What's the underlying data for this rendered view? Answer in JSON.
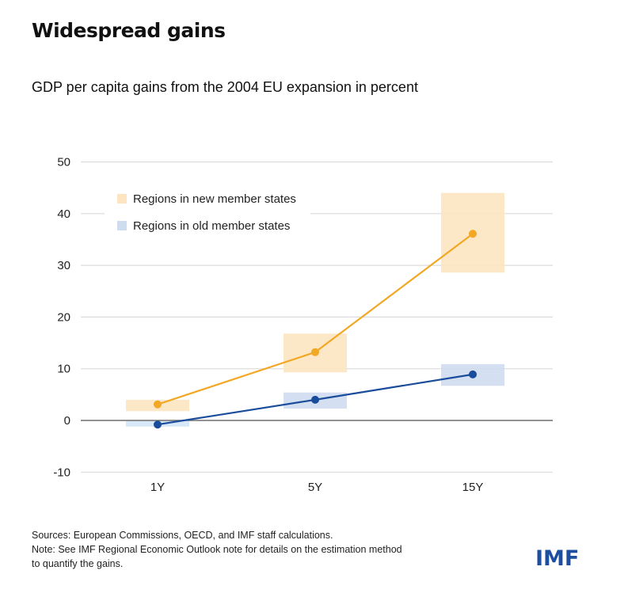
{
  "header": {
    "title": "Widespread gains",
    "subtitle": "GDP per capita gains from the 2004 EU expansion in percent"
  },
  "footer": {
    "sources": "Sources: European Commissions, OECD, and IMF staff calculations.",
    "note_line1": "Note: See IMF Regional Economic Outlook note for details on the estimation method",
    "note_line2": "to quantify the gains."
  },
  "logo": {
    "text": "IMF",
    "color": "#1d4f9e"
  },
  "chart_data": {
    "type": "line",
    "title": "GDP per capita gains from the 2004 EU expansion in percent",
    "xlabel": "",
    "ylabel": "",
    "categories": [
      "1Y",
      "5Y",
      "15Y"
    ],
    "ylim": [
      -10,
      50
    ],
    "yticks": [
      -10,
      0,
      10,
      20,
      30,
      40,
      50
    ],
    "ytick_labels": [
      "-10",
      "0",
      "10",
      "20",
      "30",
      "40",
      "50"
    ],
    "grid": true,
    "legend_position": "top-left",
    "series": [
      {
        "name": "Regions in new member states",
        "values": [
          3.1,
          13.2,
          36.1
        ],
        "range_low": [
          1.8,
          9.3,
          28.6
        ],
        "range_high": [
          4.0,
          16.8,
          44.0
        ],
        "line_color": "#f2a825",
        "band_color": "#fce5c0"
      },
      {
        "name": "Regions in old member states",
        "values": [
          -0.8,
          4.0,
          8.9
        ],
        "range_low": [
          -1.2,
          2.3,
          6.7
        ],
        "range_high": [
          0.0,
          5.4,
          10.9
        ],
        "line_color": "#1a4c9c",
        "band_color": "#cfdcef",
        "band_color_first": "#d3e5f7"
      }
    ]
  }
}
